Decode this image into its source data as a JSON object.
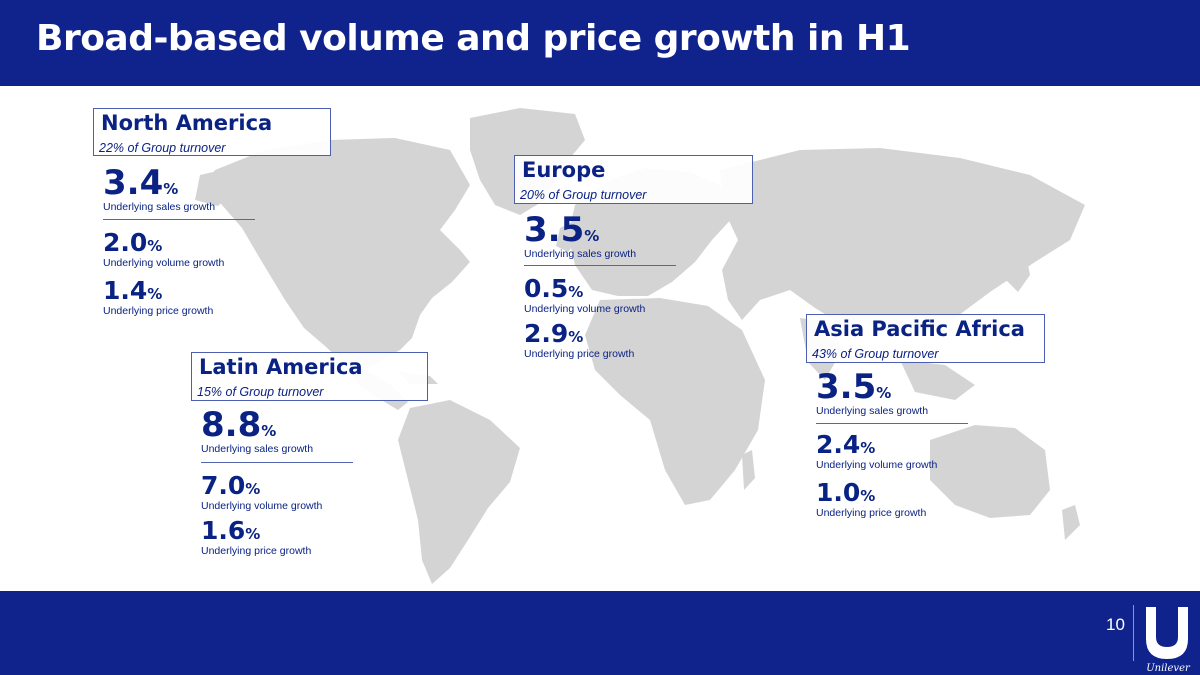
{
  "slide": {
    "title": "Broad-based volume and price growth in H1",
    "page_number": "10",
    "brand": "Unilever"
  },
  "colors": {
    "header_bg": "#10238d",
    "text": "#0a2283",
    "map_land": "#d4d4d4"
  },
  "regions": {
    "north_america": {
      "name": "North America",
      "share": "22% of Group turnover",
      "sales": {
        "value": "3.4",
        "unit": "%",
        "label": "Underlying sales growth"
      },
      "volume": {
        "value": "2.0",
        "unit": "%",
        "label": "Underlying volume growth"
      },
      "price": {
        "value": "1.4",
        "unit": "%",
        "label": "Underlying price growth"
      }
    },
    "europe": {
      "name": "Europe",
      "share": "20% of Group turnover",
      "sales": {
        "value": "3.5",
        "unit": "%",
        "label": "Underlying sales growth"
      },
      "volume": {
        "value": "0.5",
        "unit": "%",
        "label": "Underlying volume growth"
      },
      "price": {
        "value": "2.9",
        "unit": "%",
        "label": "Underlying price growth"
      }
    },
    "latin_america": {
      "name": "Latin America",
      "share": "15% of Group turnover",
      "sales": {
        "value": "8.8",
        "unit": "%",
        "label": "Underlying sales growth"
      },
      "volume": {
        "value": "7.0",
        "unit": "%",
        "label": "Underlying volume growth"
      },
      "price": {
        "value": "1.6",
        "unit": "%",
        "label": "Underlying price growth"
      }
    },
    "asia_pacific_africa": {
      "name": "Asia Pacific Africa",
      "share": "43% of Group turnover",
      "sales": {
        "value": "3.5",
        "unit": "%",
        "label": "Underlying sales growth"
      },
      "volume": {
        "value": "2.4",
        "unit": "%",
        "label": "Underlying volume growth"
      },
      "price": {
        "value": "1.0",
        "unit": "%",
        "label": "Underlying price growth"
      }
    }
  }
}
